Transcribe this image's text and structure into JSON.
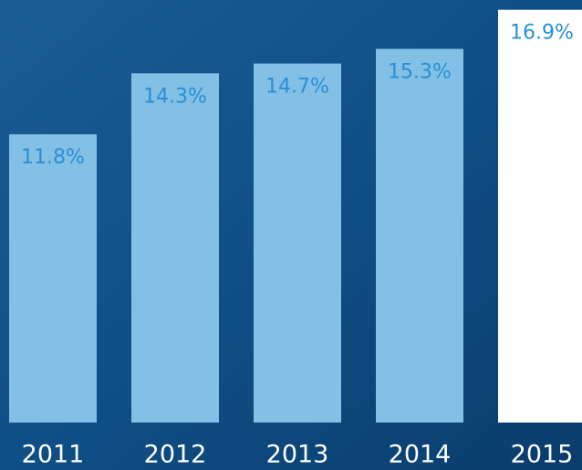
{
  "chart_data": {
    "type": "bar",
    "categories": [
      "2011",
      "2012",
      "2013",
      "2014",
      "2015"
    ],
    "values": [
      11.8,
      14.3,
      14.7,
      15.3,
      16.9
    ],
    "value_labels": [
      "11.8%",
      "14.3%",
      "14.7%",
      "15.3%",
      "16.9%"
    ],
    "colors": [
      "#82c0e6",
      "#82c0e6",
      "#82c0e6",
      "#82c0e6",
      "#ffffff"
    ],
    "ylim": [
      0,
      17.3
    ]
  }
}
